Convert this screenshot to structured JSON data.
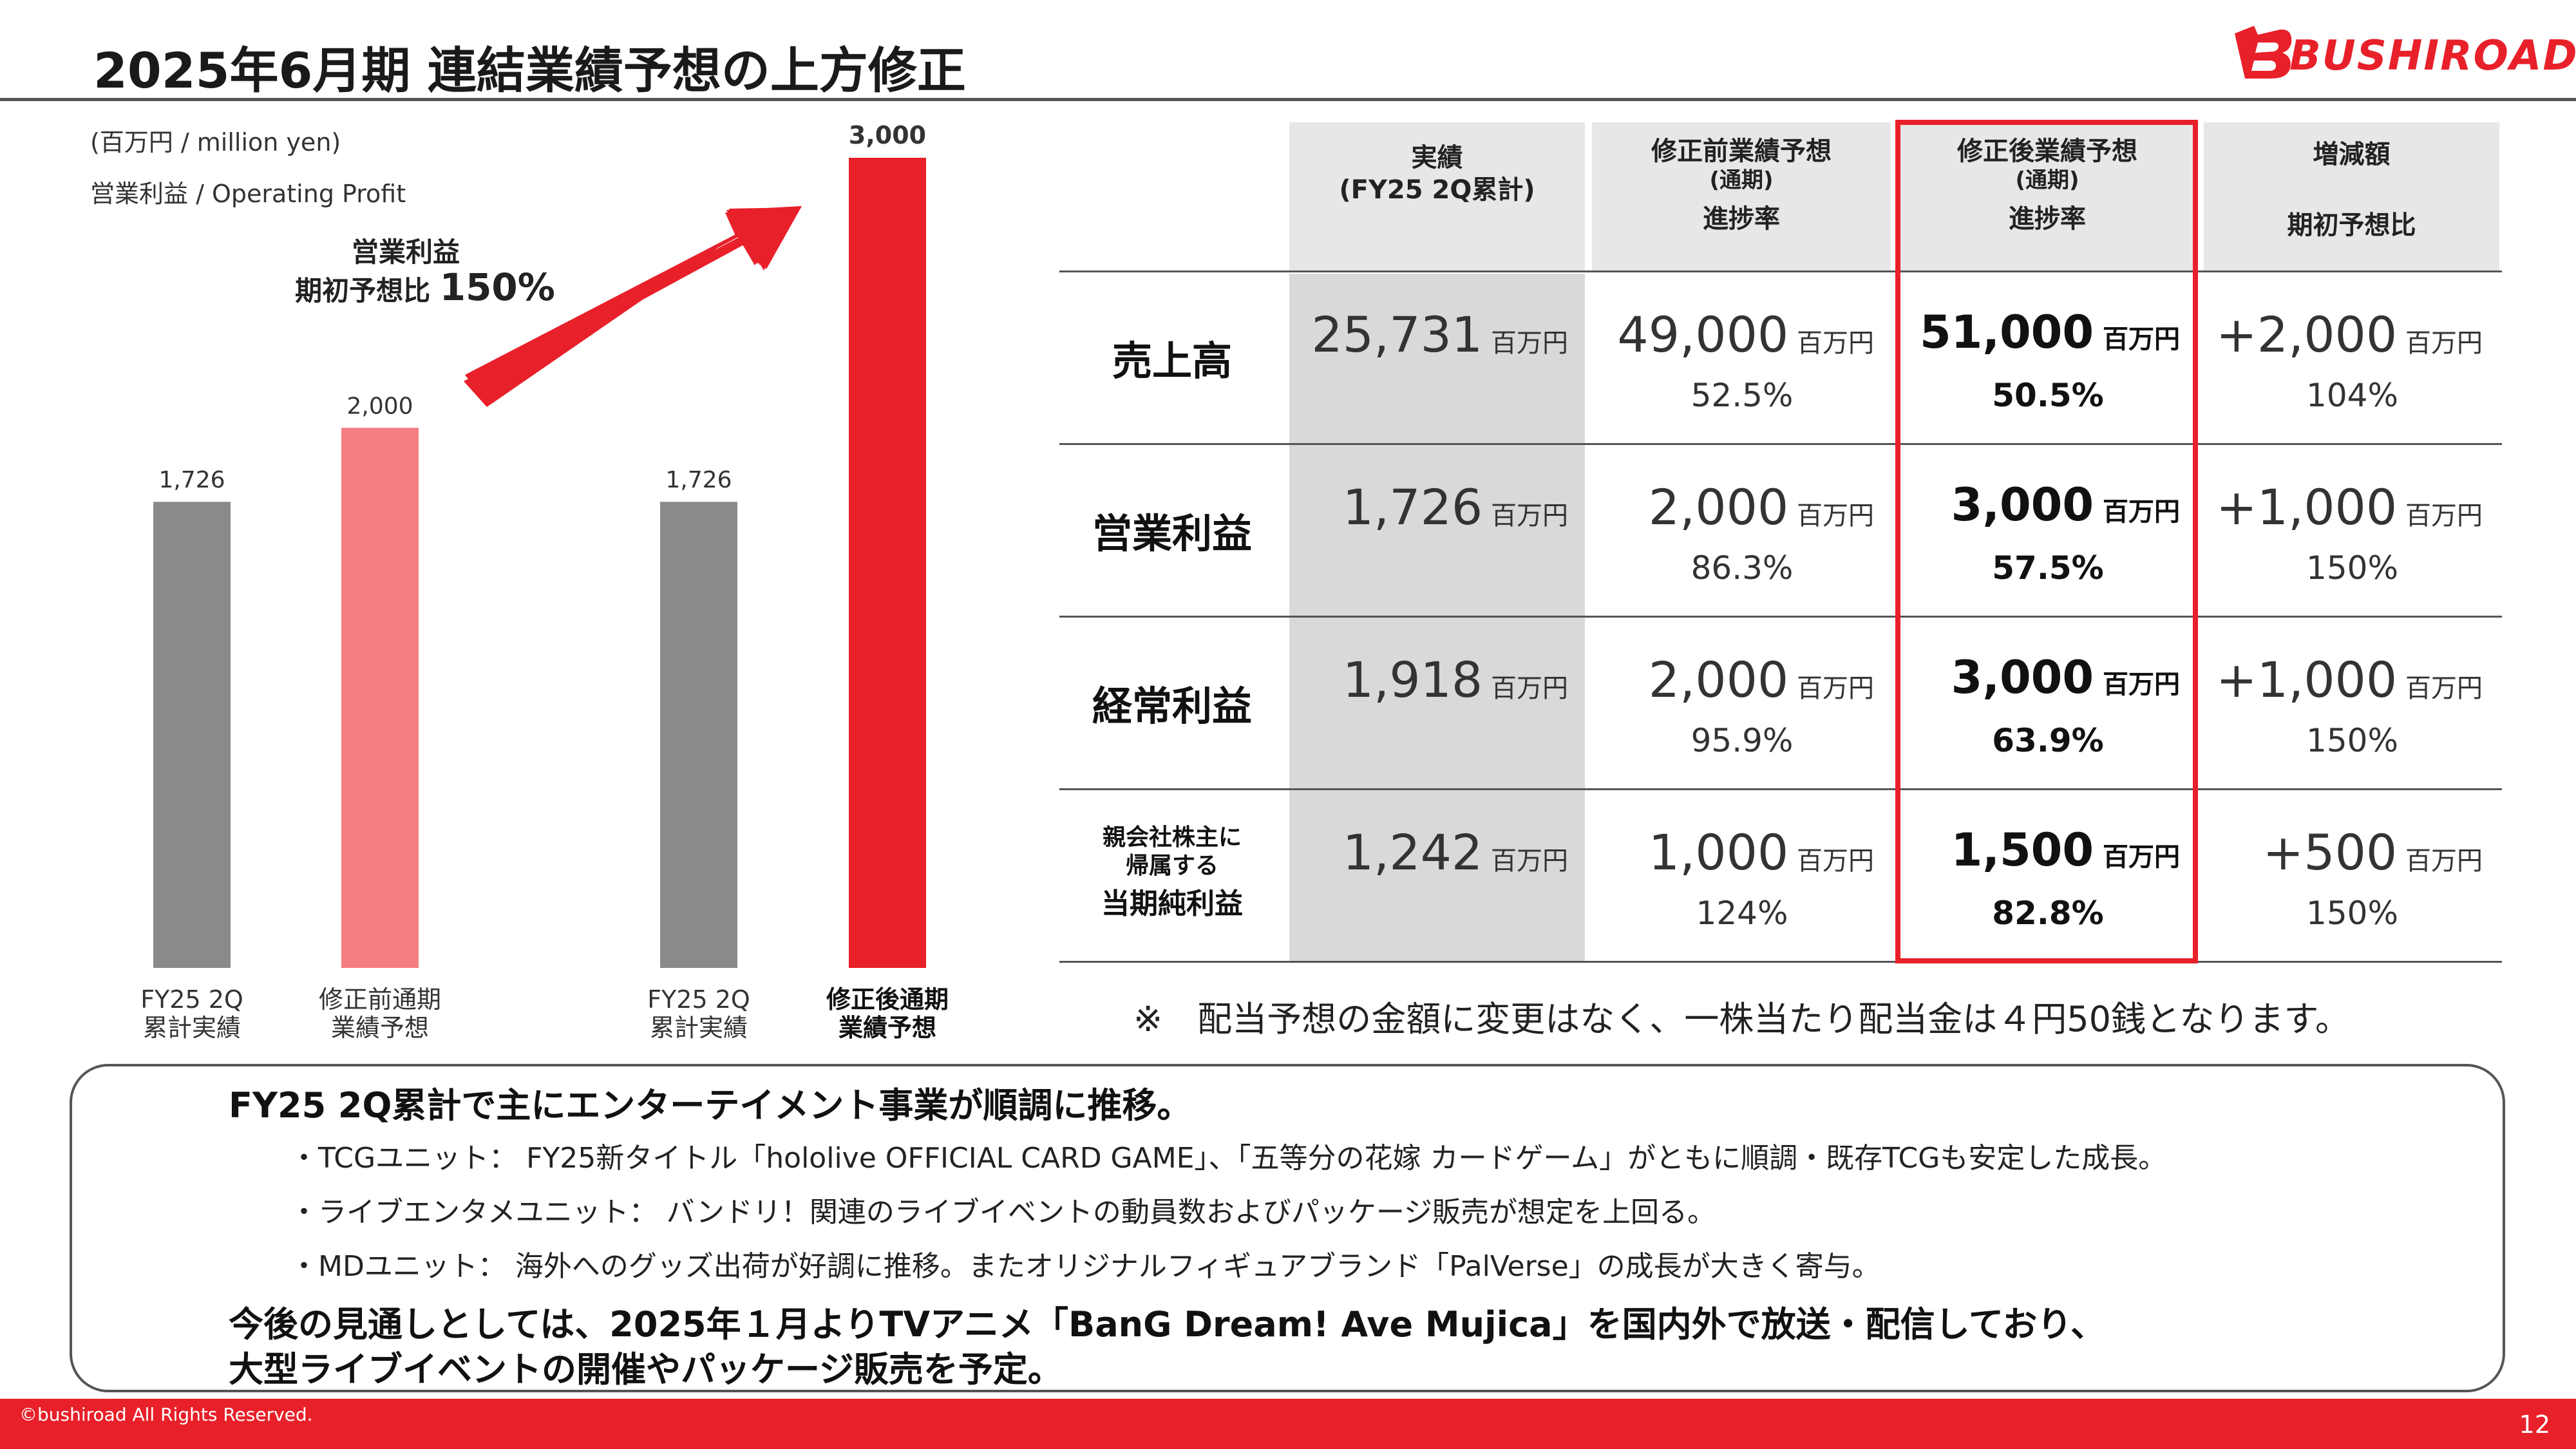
{
  "title": "2025年6月期 連結業績予想の上方修正",
  "logo_text": "BUSHIROAD",
  "colors": {
    "brand_red": "#e8202a",
    "bar_gray": "#8a8a8a",
    "bar_pink": "#f37e81",
    "header_gray": "#e7e7e7",
    "shade_gray": "#d9d9d9"
  },
  "chart": {
    "unit_label": "(百万円 / million yen)",
    "metric_label": "営業利益 / Operating Profit",
    "comment_line1": "営業利益",
    "comment_line2_prefix": "期初予想比",
    "comment_line2_value": "150%",
    "arrow_icon": "up-right-arrow"
  },
  "chart_data": {
    "type": "bar",
    "categories": [
      "FY25 2Q 累計実績",
      "修正前通期 業績予想",
      "FY25 2Q 累計実績",
      "修正後通期 業績予想"
    ],
    "values": [
      1726,
      2000,
      1726,
      3000
    ],
    "value_labels": [
      "1,726",
      "2,000",
      "1,726",
      "3,000"
    ],
    "category_lines": [
      [
        "FY25 2Q",
        "累計実績"
      ],
      [
        "修正前通期",
        "業績予想"
      ],
      [
        "FY25 2Q",
        "累計実績"
      ],
      [
        "修正後通期",
        "業績予想"
      ]
    ],
    "colors": [
      "#8a8a8a",
      "#f37e81",
      "#8a8a8a",
      "#e8202a"
    ],
    "ylim": [
      0,
      3000
    ]
  },
  "table": {
    "headers": [
      {
        "line1": "実績",
        "line2": "(FY25 2Q累計)",
        "line3": ""
      },
      {
        "line1": "修正前業績予想",
        "line2": "(通期)",
        "line3": "進捗率"
      },
      {
        "line1": "修正後業績予想",
        "line2": "(通期)",
        "line3": "進捗率"
      },
      {
        "line1": "増減額",
        "line2": "",
        "line3": "期初予想比"
      }
    ],
    "rows": [
      {
        "label": "売上高",
        "label_small": "",
        "actual": "25,731",
        "before": "49,000",
        "before_rate": "52.5%",
        "after": "51,000",
        "after_rate": "50.5%",
        "diff": "+2,000",
        "diff_rate": "104%"
      },
      {
        "label": "営業利益",
        "label_small": "",
        "actual": "1,726",
        "before": "2,000",
        "before_rate": "86.3%",
        "after": "3,000",
        "after_rate": "57.5%",
        "diff": "+1,000",
        "diff_rate": "150%"
      },
      {
        "label": "経常利益",
        "label_small": "",
        "actual": "1,918",
        "before": "2,000",
        "before_rate": "95.9%",
        "after": "3,000",
        "after_rate": "63.9%",
        "diff": "+1,000",
        "diff_rate": "150%"
      },
      {
        "label": "当期純利益",
        "label_small": "親会社株主に\n帰属する",
        "actual": "1,242",
        "before": "1,000",
        "before_rate": "124%",
        "after": "1,500",
        "after_rate": "82.8%",
        "diff": "+500",
        "diff_rate": "150%"
      }
    ],
    "unit": "百万円"
  },
  "note": "※　配当予想の金額に変更はなく、一株当たり配当金は４円50銭となります。",
  "summary": {
    "heading1": "FY25 2Q累計で主にエンターテイメント事業が順調に推移。",
    "bullets": [
      "・TCGユニット：  FY25新タイトル「hololive OFFICIAL CARD GAME」、「五等分の花嫁 カードゲーム」がともに順調・既存TCGも安定した成長。",
      "・ライブエンタメユニット：  バンドリ！関連のライブイベントの動員数およびパッケージ販売が想定を上回る。",
      "・MDユニット：  海外へのグッズ出荷が好調に推移。またオリジナルフィギュアブランド「PalVerse」の成長が大きく寄与。"
    ],
    "heading2_line1": "今後の見通しとしては、2025年１月よりTVアニメ「BanG Dream! Ave Mujica」を国内外で放送・配信しており、",
    "heading2_line2": "大型ライブイベントの開催やパッケージ販売を予定。"
  },
  "footer": {
    "copyright": "©bushiroad All Rights Reserved.",
    "page": "12"
  }
}
